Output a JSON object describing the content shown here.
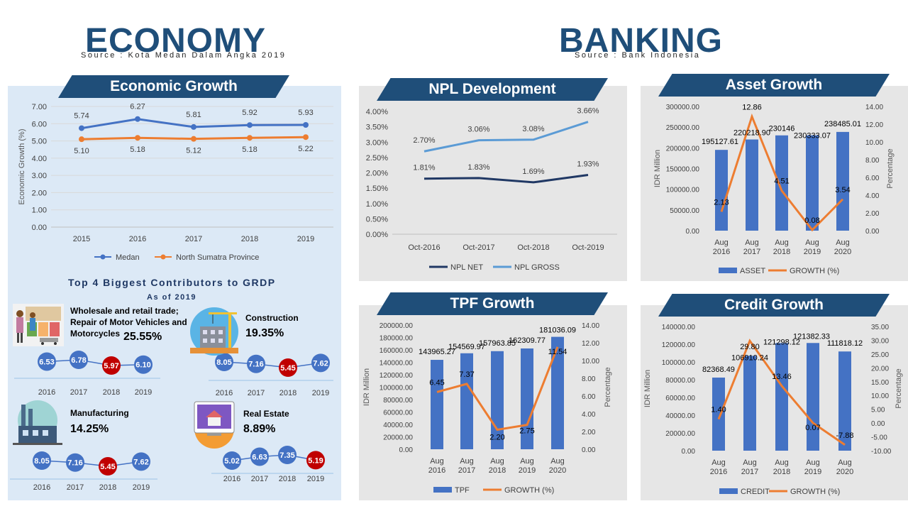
{
  "header": {
    "economy_title": "ECONOMY",
    "economy_source": "Source : Kota Medan Dalam Angka 2019",
    "banking_title": "BANKING",
    "banking_source": "Source : Bank Indonesia"
  },
  "panels": {
    "economic_growth": "Economic Growth",
    "npl": "NPL Development",
    "asset": "Asset Growth",
    "tpf": "TPF Growth",
    "credit": "Credit Growth"
  },
  "colors": {
    "navy": "#1f4e79",
    "bar": "#4472c4",
    "orange": "#ed7d31",
    "lightblue": "#5b9bd5",
    "darknavy": "#203864",
    "red": "#c00000"
  },
  "chart_data": [
    {
      "id": "economic_growth",
      "type": "line",
      "categories": [
        "2015",
        "2016",
        "2017",
        "2018",
        "2019"
      ],
      "series": [
        {
          "name": "Medan",
          "values": [
            5.74,
            6.27,
            5.81,
            5.92,
            5.93
          ],
          "labels": [
            "5.74",
            "6.27",
            "5.81",
            "5.92",
            "5.93"
          ]
        },
        {
          "name": "North Sumatra Province",
          "values": [
            5.1,
            5.18,
            5.12,
            5.18,
            5.22
          ],
          "labels": [
            "5.10",
            "5.18",
            "5.12",
            "5.18",
            "5.22"
          ]
        }
      ],
      "ylabel": "Economic Growth (%)",
      "ylim": [
        0,
        7
      ],
      "yticks": [
        "0.00",
        "1.00",
        "2.00",
        "3.00",
        "4.00",
        "5.00",
        "6.00",
        "7.00"
      ]
    },
    {
      "id": "npl",
      "type": "line",
      "categories": [
        "Oct-2016",
        "Oct-2017",
        "Oct-2018",
        "Oct-2019"
      ],
      "series": [
        {
          "name": "NPL NET",
          "values": [
            1.81,
            1.83,
            1.69,
            1.93
          ],
          "labels": [
            "1.81%",
            "1.83%",
            "1.69%",
            "1.93%"
          ]
        },
        {
          "name": "NPL GROSS",
          "values": [
            2.7,
            3.06,
            3.08,
            3.66
          ],
          "labels": [
            "2.70%",
            "3.06%",
            "3.08%",
            "3.66%"
          ]
        }
      ],
      "ylim": [
        0,
        4
      ],
      "yticks": [
        "0.00%",
        "0.50%",
        "1.00%",
        "1.50%",
        "2.00%",
        "2.50%",
        "3.00%",
        "3.50%",
        "4.00%"
      ]
    },
    {
      "id": "asset",
      "type": "bar",
      "categories": [
        "Aug 2016",
        "Aug 2017",
        "Aug 2018",
        "Aug 2019",
        "Aug 2020"
      ],
      "bar_series": {
        "name": "ASSET",
        "values": [
          195127.61,
          220218.9,
          230146,
          230333.07,
          238485.01
        ],
        "labels": [
          "195127.61",
          "220218.90",
          "230146",
          "230333.07",
          "238485.01"
        ]
      },
      "line_series": {
        "name": "GROWTH (%)",
        "values": [
          2.13,
          12.86,
          4.51,
          0.08,
          3.54
        ],
        "labels": [
          "2.13",
          "12.86",
          "4.51",
          "0.08",
          "3.54"
        ]
      },
      "ylabel": "IDR Million",
      "y2label": "Percentage",
      "ylim": [
        0,
        300000
      ],
      "yticks": [
        "0.00",
        "50000.00",
        "100000.00",
        "150000.00",
        "200000.00",
        "250000.00",
        "300000.00"
      ],
      "y2lim": [
        0,
        14
      ],
      "y2ticks": [
        "0.00",
        "2.00",
        "4.00",
        "6.00",
        "8.00",
        "10.00",
        "12.00",
        "14.00"
      ]
    },
    {
      "id": "tpf",
      "type": "bar",
      "categories": [
        "Aug 2016",
        "Aug 2017",
        "Aug 2018",
        "Aug 2019",
        "Aug 2020"
      ],
      "bar_series": {
        "name": "TPF",
        "values": [
          143965.27,
          154569.97,
          157963.85,
          162309.77,
          181036.09
        ],
        "labels": [
          "143965.27",
          "154569.97",
          "157963.85",
          "162309.77",
          "181036.09"
        ]
      },
      "line_series": {
        "name": "GROWTH (%)",
        "values": [
          6.45,
          7.37,
          2.2,
          2.75,
          11.54
        ],
        "labels": [
          "6.45",
          "7.37",
          "2.20",
          "2.75",
          "11.54"
        ]
      },
      "ylabel": "IDR Million",
      "y2label": "Percentage",
      "ylim": [
        0,
        200000
      ],
      "yticks": [
        "0.00",
        "20000.00",
        "40000.00",
        "60000.00",
        "80000.00",
        "100000.00",
        "120000.00",
        "140000.00",
        "160000.00",
        "180000.00",
        "200000.00"
      ],
      "y2lim": [
        0,
        14
      ],
      "y2ticks": [
        "0.00",
        "2.00",
        "4.00",
        "6.00",
        "8.00",
        "10.00",
        "12.00",
        "14.00"
      ]
    },
    {
      "id": "credit",
      "type": "bar",
      "categories": [
        "Aug 2016",
        "Aug 2017",
        "Aug 2018",
        "Aug 2019",
        "Aug 2020"
      ],
      "bar_series": {
        "name": "CREDIT",
        "values": [
          82368.49,
          106910.24,
          121298.12,
          121382.33,
          111818.12
        ],
        "labels": [
          "82368.49",
          "106910.24",
          "121298.12",
          "121382.33",
          "111818.12"
        ]
      },
      "line_series": {
        "name": "GROWTH (%)",
        "values": [
          1.4,
          29.8,
          13.46,
          0.07,
          -7.88
        ],
        "labels": [
          "1.40",
          "29.80",
          "13.46",
          "0.07",
          "-7.88"
        ]
      },
      "ylabel": "IDR Million",
      "y2label": "Percentage",
      "ylim": [
        0,
        140000
      ],
      "yticks": [
        "0.00",
        "20000.00",
        "40000.00",
        "60000.00",
        "80000.00",
        "100000.00",
        "120000.00",
        "140000.00"
      ],
      "y2lim": [
        -10,
        35
      ],
      "y2ticks": [
        "-10.00",
        "-5.00",
        "0.00",
        "5.00",
        "10.00",
        "15.00",
        "20.00",
        "25.00",
        "30.00",
        "35.00"
      ]
    }
  ],
  "contributors": {
    "title": "Top 4 Biggest Contributors to GRDP",
    "subtitle": "As of 2019",
    "items": [
      {
        "id": "wholesale",
        "icon": "shopping-market-icon",
        "name": "Wholesale and retail trade; Repair of Motor Vehicles and Motorcycles",
        "pct": "25.55%",
        "years": [
          "2016",
          "2017",
          "2018",
          "2019"
        ],
        "values": [
          6.53,
          6.78,
          5.97,
          6.1
        ],
        "labels": [
          "6.53",
          "6.78",
          "5.97",
          "6.10"
        ],
        "highlight": 2
      },
      {
        "id": "construction",
        "icon": "construction-site-icon",
        "name": "Construction",
        "pct": "19.35%",
        "years": [
          "2016",
          "2017",
          "2018",
          "2019"
        ],
        "values": [
          8.05,
          7.16,
          5.45,
          7.62
        ],
        "labels": [
          "8.05",
          "7.16",
          "5.45",
          "7.62"
        ],
        "highlight": 2
      },
      {
        "id": "manufacturing",
        "icon": "factory-icon",
        "name": "Manufacturing",
        "pct": "14.25%",
        "years": [
          "2016",
          "2017",
          "2018",
          "2019"
        ],
        "values": [
          8.05,
          7.16,
          5.45,
          7.62
        ],
        "labels": [
          "8.05",
          "7.16",
          "5.45",
          "7.62"
        ],
        "highlight": 2
      },
      {
        "id": "realestate",
        "icon": "real-estate-icon",
        "name": "Real Estate",
        "pct": "8.89%",
        "years": [
          "2016",
          "2017",
          "2018",
          "2019"
        ],
        "values": [
          5.02,
          6.63,
          7.35,
          5.19
        ],
        "labels": [
          "5.02",
          "6.63",
          "7.35",
          "5.19"
        ],
        "highlight": 3
      }
    ]
  }
}
